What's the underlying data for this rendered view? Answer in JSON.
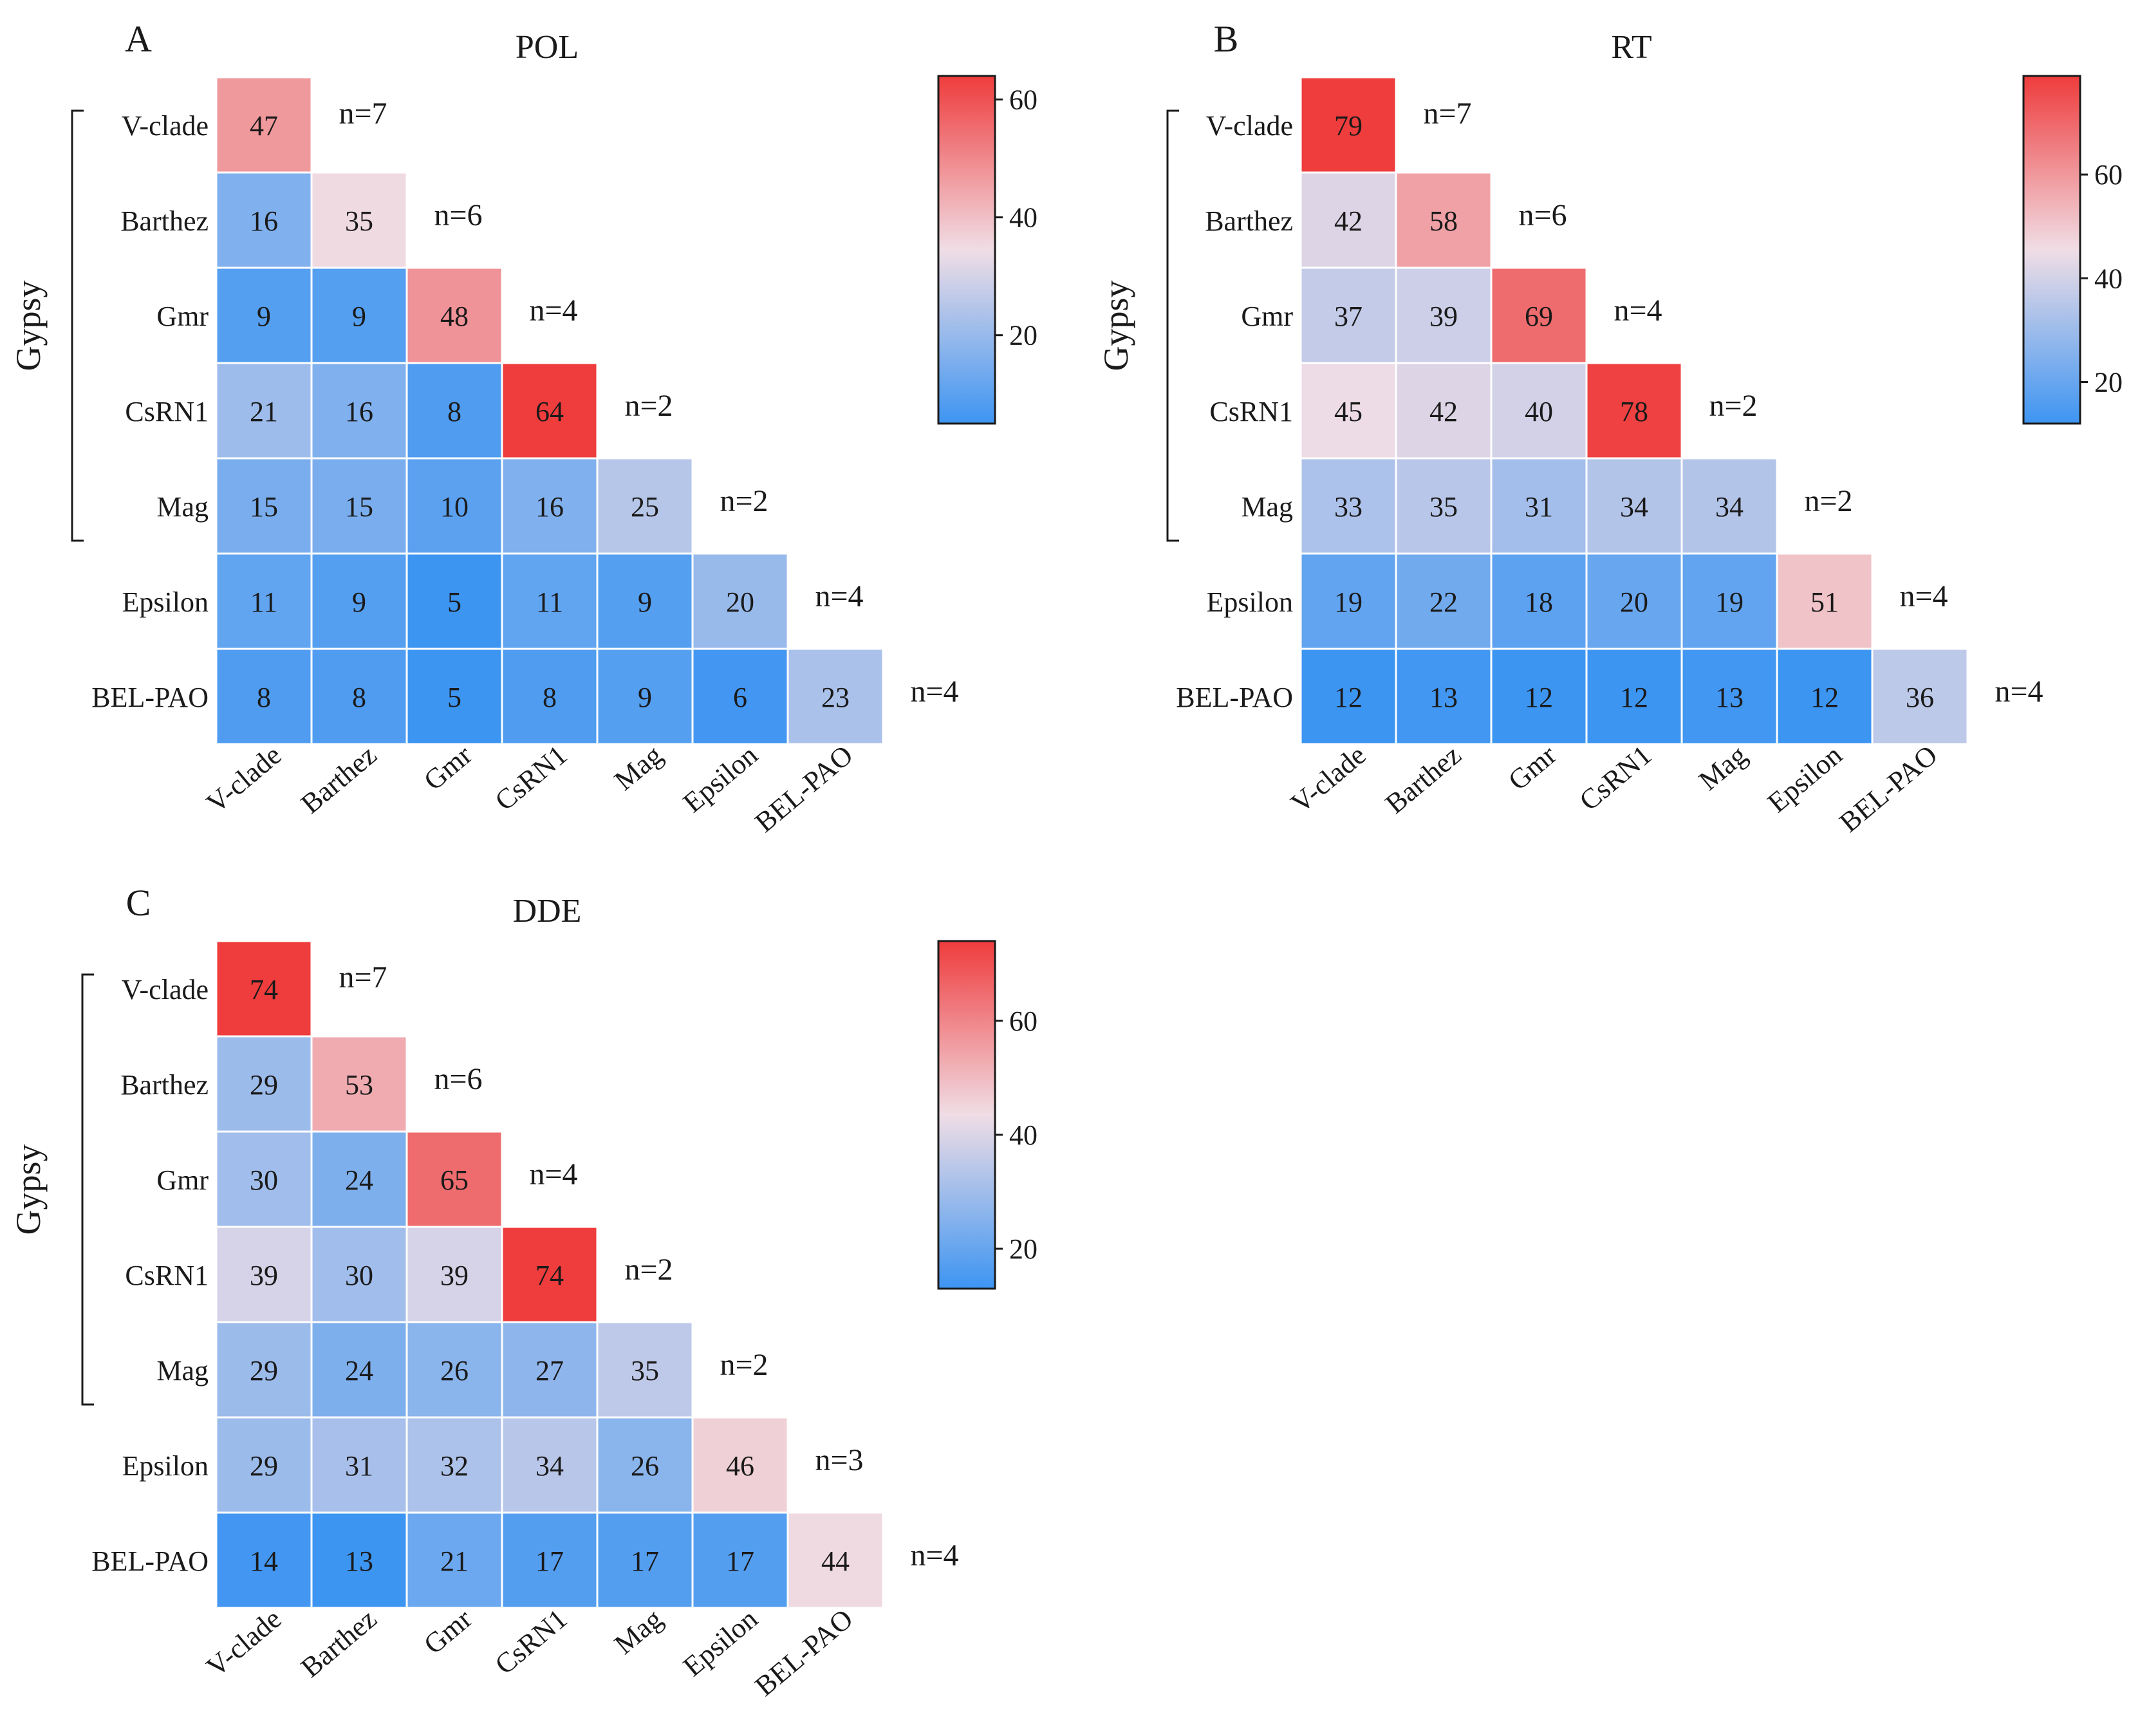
{
  "colors": {
    "low": "#3d95f2",
    "mid": "#f0dde5",
    "high": "#ef3c3c",
    "text": "#1a1a1a",
    "gridline": "#ffffff"
  },
  "chart_data": [
    {
      "type": "heatmap",
      "panel_label": "A",
      "title": "POL",
      "row_labels": [
        "V-clade",
        "Barthez",
        "Gmr",
        "CsRN1",
        "Mag",
        "Epsilon",
        "BEL-PAO"
      ],
      "col_labels": [
        "V-clade",
        "Barthez",
        "Gmr",
        "CsRN1",
        "Mag",
        "Epsilon",
        "BEL-PAO"
      ],
      "values": [
        [
          47
        ],
        [
          16,
          35
        ],
        [
          9,
          9,
          48
        ],
        [
          21,
          16,
          8,
          64
        ],
        [
          15,
          15,
          10,
          16,
          25
        ],
        [
          11,
          9,
          5,
          11,
          9,
          20
        ],
        [
          8,
          8,
          5,
          8,
          9,
          6,
          23
        ]
      ],
      "n_labels": [
        "n=7",
        "n=6",
        "n=4",
        "n=2",
        "n=2",
        "n=4",
        "n=4"
      ],
      "group_label": "Gypsy",
      "group_rows": [
        0,
        4
      ],
      "color_range": [
        5,
        64
      ],
      "colorbar_ticks": [
        20,
        40,
        60
      ]
    },
    {
      "type": "heatmap",
      "panel_label": "B",
      "title": "RT",
      "row_labels": [
        "V-clade",
        "Barthez",
        "Gmr",
        "CsRN1",
        "Mag",
        "Epsilon",
        "BEL-PAO"
      ],
      "col_labels": [
        "V-clade",
        "Barthez",
        "Gmr",
        "CsRN1",
        "Mag",
        "Epsilon",
        "BEL-PAO"
      ],
      "values": [
        [
          79
        ],
        [
          42,
          58
        ],
        [
          37,
          39,
          69
        ],
        [
          45,
          42,
          40,
          78
        ],
        [
          33,
          35,
          31,
          34,
          34
        ],
        [
          19,
          22,
          18,
          20,
          19,
          51
        ],
        [
          12,
          13,
          12,
          12,
          13,
          12,
          36
        ]
      ],
      "n_labels": [
        "n=7",
        "n=6",
        "n=4",
        "n=2",
        "n=2",
        "n=4",
        "n=4"
      ],
      "group_label": "Gypsy",
      "group_rows": [
        0,
        4
      ],
      "color_range": [
        12,
        79
      ],
      "colorbar_ticks": [
        20,
        40,
        60
      ]
    },
    {
      "type": "heatmap",
      "panel_label": "C",
      "title": "DDE",
      "row_labels": [
        "V-clade",
        "Barthez",
        "Gmr",
        "CsRN1",
        "Mag",
        "Epsilon",
        "BEL-PAO"
      ],
      "col_labels": [
        "V-clade",
        "Barthez",
        "Gmr",
        "CsRN1",
        "Mag",
        "Epsilon",
        "BEL-PAO"
      ],
      "values": [
        [
          74
        ],
        [
          29,
          53
        ],
        [
          30,
          24,
          65
        ],
        [
          39,
          30,
          39,
          74
        ],
        [
          29,
          24,
          26,
          27,
          35
        ],
        [
          29,
          31,
          32,
          34,
          26,
          46
        ],
        [
          14,
          13,
          21,
          17,
          17,
          17,
          44
        ]
      ],
      "n_labels": [
        "n=7",
        "n=6",
        "n=4",
        "n=2",
        "n=2",
        "n=3",
        "n=4"
      ],
      "group_label": "Gypsy",
      "group_rows": [
        0,
        4
      ],
      "color_range": [
        13,
        74
      ],
      "colorbar_ticks": [
        20,
        40,
        60
      ]
    }
  ]
}
